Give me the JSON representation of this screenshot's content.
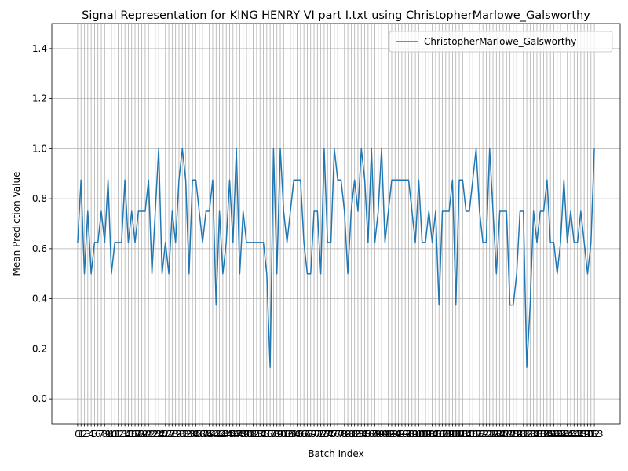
{
  "chart_data": {
    "type": "line",
    "title": "Signal Representation for KING HENRY VI part I.txt using ChristopherMarlowe_Galsworthy",
    "xlabel": "Batch Index",
    "ylabel": "Mean Prediction Value",
    "x": [
      0,
      1,
      2,
      3,
      4,
      5,
      6,
      7,
      8,
      9,
      10,
      11,
      12,
      13,
      14,
      15,
      16,
      17,
      18,
      19,
      20,
      21,
      22,
      23,
      24,
      25,
      26,
      27,
      28,
      29,
      30,
      31,
      32,
      33,
      34,
      35,
      36,
      37,
      38,
      39,
      40,
      41,
      42,
      43,
      44,
      45,
      46,
      47,
      48,
      49,
      50,
      51,
      52,
      53,
      54,
      55,
      56,
      57,
      58,
      59,
      60,
      61,
      62,
      63,
      64,
      65,
      66,
      67,
      68,
      69,
      70,
      71,
      72,
      73,
      74,
      75,
      76,
      77,
      78,
      79,
      80,
      81,
      82,
      83,
      84,
      85,
      86,
      87,
      88,
      89,
      90,
      91,
      92,
      93,
      94,
      95,
      96,
      97,
      98,
      99,
      100,
      101,
      102,
      103,
      104,
      105,
      106,
      107,
      108,
      109,
      110,
      111,
      112,
      113,
      114,
      115,
      116,
      117,
      118,
      119,
      120,
      121,
      122,
      123,
      124,
      125,
      126,
      127,
      128,
      129,
      130,
      131,
      132,
      133,
      134,
      135,
      136,
      137,
      138,
      139,
      140,
      141,
      142,
      143,
      144,
      145,
      146,
      147,
      148,
      149,
      150,
      151,
      152,
      153
    ],
    "series": [
      {
        "name": "ChristopherMarlowe_Galsworthy",
        "color": "#1f77b4",
        "values": [
          0.625,
          0.875,
          0.5,
          0.75,
          0.5,
          0.625,
          0.625,
          0.75,
          0.625,
          0.875,
          0.5,
          0.625,
          0.625,
          0.625,
          0.875,
          0.625,
          0.75,
          0.625,
          0.75,
          0.75,
          0.75,
          0.875,
          0.5,
          0.75,
          1.0,
          0.5,
          0.625,
          0.5,
          0.75,
          0.625,
          0.875,
          1.0,
          0.875,
          0.5,
          0.875,
          0.875,
          0.75,
          0.625,
          0.75,
          0.75,
          0.875,
          0.375,
          0.75,
          0.5,
          0.625,
          0.875,
          0.625,
          1.0,
          0.5,
          0.75,
          0.625,
          0.625,
          0.625,
          0.625,
          0.625,
          0.625,
          0.5,
          0.125,
          1.0,
          0.5,
          1.0,
          0.75,
          0.625,
          0.75,
          0.875,
          0.875,
          0.875,
          0.625,
          0.5,
          0.5,
          0.75,
          0.75,
          0.5,
          1.0,
          0.625,
          0.625,
          1.0,
          0.875,
          0.875,
          0.75,
          0.5,
          0.75,
          0.875,
          0.75,
          1.0,
          0.875,
          0.625,
          1.0,
          0.625,
          0.75,
          1.0,
          0.625,
          0.75,
          0.875,
          0.875,
          0.875,
          0.875,
          0.875,
          0.875,
          0.75,
          0.625,
          0.875,
          0.625,
          0.625,
          0.75,
          0.625,
          0.75,
          0.375,
          0.75,
          0.75,
          0.75,
          0.875,
          0.375,
          0.875,
          0.875,
          0.75,
          0.75,
          0.875,
          1.0,
          0.75,
          0.625,
          0.625,
          1.0,
          0.75,
          0.5,
          0.75,
          0.75,
          0.75,
          0.375,
          0.375,
          0.5,
          0.75,
          0.75,
          0.125,
          0.375,
          0.75,
          0.625,
          0.75,
          0.75,
          0.875,
          0.625,
          0.625,
          0.5,
          0.625,
          0.875,
          0.625,
          0.75,
          0.625,
          0.625,
          0.75,
          0.625,
          0.5,
          0.625,
          1.0
        ]
      }
    ],
    "xlim": [
      -7.65,
      160.65
    ],
    "xticks": [
      0,
      1,
      2,
      3,
      4,
      5,
      6,
      7,
      8,
      9,
      10,
      11,
      12,
      13,
      14,
      15,
      16,
      17,
      18,
      19,
      20,
      21,
      22,
      23,
      24,
      25,
      26,
      27,
      28,
      29,
      30,
      31,
      32,
      33,
      34,
      35,
      36,
      37,
      38,
      39,
      40,
      41,
      42,
      43,
      44,
      45,
      46,
      47,
      48,
      49,
      50,
      51,
      52,
      53,
      54,
      55,
      56,
      57,
      58,
      59,
      60,
      61,
      62,
      63,
      64,
      65,
      66,
      67,
      68,
      69,
      70,
      71,
      72,
      73,
      74,
      75,
      76,
      77,
      78,
      79,
      80,
      81,
      82,
      83,
      84,
      85,
      86,
      87,
      88,
      89,
      90,
      91,
      92,
      93,
      94,
      95,
      96,
      97,
      98,
      99,
      100,
      101,
      102,
      103,
      104,
      105,
      106,
      107,
      108,
      109,
      110,
      111,
      112,
      113,
      114,
      115,
      116,
      117,
      118,
      119,
      120,
      121,
      122,
      123,
      124,
      125,
      126,
      127,
      128,
      129,
      130,
      131,
      132,
      133,
      134,
      135,
      136,
      137,
      138,
      139,
      140,
      141,
      142,
      143,
      144,
      145,
      146,
      147,
      148,
      149,
      150,
      151,
      152,
      153
    ],
    "ylim": [
      -0.1,
      1.5
    ],
    "yticks": [
      {
        "value": 0,
        "label": "0.0"
      },
      {
        "value": 0.2,
        "label": "0.2"
      },
      {
        "value": 0.4,
        "label": "0.4"
      },
      {
        "value": 0.6,
        "label": "0.6"
      },
      {
        "value": 0.8,
        "label": "0.8"
      },
      {
        "value": 1.0,
        "label": "1.0"
      },
      {
        "value": 1.2,
        "label": "1.2"
      },
      {
        "value": 1.4,
        "label": "1.4"
      }
    ],
    "grid": true,
    "legend": "upper right"
  }
}
